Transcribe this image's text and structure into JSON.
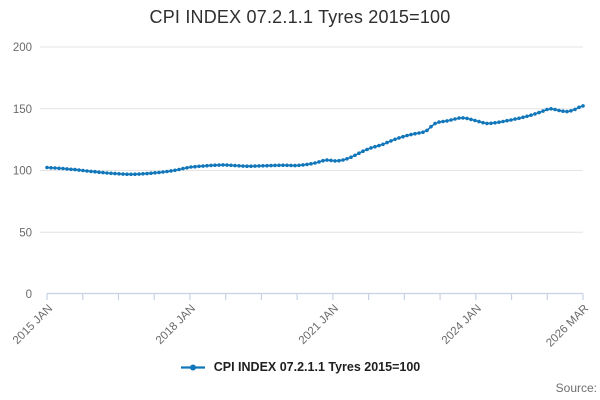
{
  "title": "CPI INDEX 07.2.1.1 Tyres 2015=100",
  "legend": {
    "label": "CPI INDEX 07.2.1.1 Tyres 2015=100"
  },
  "source_label": "Source:",
  "colors": {
    "series": "#1177ba",
    "grid": "#e4e4e4",
    "axis": "#c6d2e2",
    "tick_label": "#6b6b6b",
    "title": "#2f2f2f"
  },
  "chart_data": {
    "type": "line",
    "title": "CPI INDEX 07.2.1.1 Tyres 2015=100",
    "xlabel": "",
    "ylabel": "",
    "ylim": [
      0,
      200
    ],
    "y_ticks": [
      0,
      50,
      100,
      150,
      200
    ],
    "grid": "horizontal",
    "marker": "circle",
    "legend_position": "bottom",
    "x_frequency": "monthly",
    "x_start": "2015 JAN",
    "x_end": "2026 MAR",
    "x_tick_count": 16,
    "x_tick_labels": [
      "2015 JAN",
      "2018 JAN",
      "2021 JAN",
      "2024 JAN",
      "2026 MAR"
    ],
    "x_tick_label_positions": [
      0,
      4,
      8,
      12,
      15
    ],
    "series": [
      {
        "name": "CPI INDEX 07.2.1.1 Tyres 2015=100",
        "values": [
          102.4,
          102.2,
          102.0,
          101.8,
          101.6,
          101.3,
          101.0,
          100.7,
          100.3,
          100.0,
          99.6,
          99.3,
          99.0,
          98.6,
          98.3,
          98.0,
          97.7,
          97.5,
          97.3,
          97.1,
          97.0,
          96.9,
          97.0,
          97.1,
          97.3,
          97.5,
          97.8,
          98.1,
          98.4,
          98.8,
          99.2,
          99.7,
          100.2,
          100.8,
          101.5,
          102.2,
          102.8,
          103.1,
          103.4,
          103.6,
          103.9,
          104.1,
          104.3,
          104.4,
          104.5,
          104.4,
          104.2,
          104.0,
          103.8,
          103.6,
          103.5,
          103.5,
          103.6,
          103.7,
          103.8,
          103.9,
          104.0,
          104.1,
          104.2,
          104.3,
          104.2,
          104.1,
          104.0,
          104.2,
          104.5,
          104.9,
          105.4,
          106.1,
          107.0,
          107.9,
          108.4,
          108.2,
          107.8,
          107.9,
          108.5,
          109.5,
          110.8,
          112.3,
          114.0,
          115.6,
          117.0,
          118.3,
          119.3,
          120.2,
          121.2,
          122.6,
          124.0,
          125.3,
          126.4,
          127.4,
          128.3,
          129.1,
          129.8,
          130.4,
          131.0,
          132.5,
          135.5,
          138.0,
          139.2,
          139.7,
          140.2,
          140.9,
          141.7,
          142.4,
          142.6,
          142.2,
          141.4,
          140.5,
          139.6,
          138.7,
          138.1,
          138.2,
          138.6,
          139.1,
          139.7,
          140.3,
          140.9,
          141.6,
          142.3,
          143.1,
          143.9,
          144.8,
          145.8,
          146.9,
          148.1,
          149.4,
          150.0,
          149.4,
          148.6,
          148.0,
          147.7,
          148.3,
          149.5,
          151.2,
          152.3
        ]
      }
    ]
  }
}
